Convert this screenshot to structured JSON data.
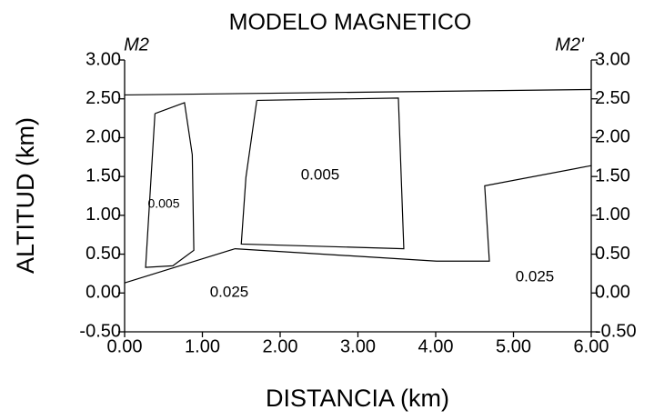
{
  "chart_data": {
    "type": "polygon",
    "title": "MODELO MAGNETICO",
    "x_label": "DISTANCIA (km)",
    "y_label": "ALTITUD (km)",
    "left_marker": "M2",
    "right_marker": "M2'",
    "xlim": [
      0,
      6
    ],
    "ylim": [
      -0.5,
      3
    ],
    "y2lim": [
      -0.5,
      3
    ],
    "xticks": [
      {
        "value": 0,
        "label": "0.00"
      },
      {
        "value": 1,
        "label": "1.00"
      },
      {
        "value": 2,
        "label": "2.00"
      },
      {
        "value": 3,
        "label": "3.00"
      },
      {
        "value": 4,
        "label": "4.00"
      },
      {
        "value": 5,
        "label": "5.00"
      },
      {
        "value": 6,
        "label": "6.00"
      }
    ],
    "yticks": [
      {
        "value": -0.5,
        "label": "-0.50"
      },
      {
        "value": 0,
        "label": "0.00"
      },
      {
        "value": 0.5,
        "label": "0.50"
      },
      {
        "value": 1,
        "label": "1.00"
      },
      {
        "value": 1.5,
        "label": "1.50"
      },
      {
        "value": 2,
        "label": "2.00"
      },
      {
        "value": 2.5,
        "label": "2.50"
      },
      {
        "value": 3,
        "label": "3.00"
      }
    ],
    "y2ticks": [
      {
        "value": -0.5,
        "label": "-0.50"
      },
      {
        "value": 0,
        "label": "0.00"
      },
      {
        "value": 0.5,
        "label": "0.50"
      },
      {
        "value": 1,
        "label": "1.00"
      },
      {
        "value": 1.5,
        "label": "1.50"
      },
      {
        "value": 2,
        "label": "2.00"
      },
      {
        "value": 2.5,
        "label": "2.50"
      },
      {
        "value": 3,
        "label": "3.00"
      }
    ],
    "series": [
      {
        "color": "#000000",
        "x": [
          0,
          6
        ],
        "values": [
          2.55,
          2.62
        ]
      },
      {
        "color": "#000000",
        "x": [
          0.39,
          0.77,
          0.87,
          0.89,
          0.62,
          0.27,
          0.39
        ],
        "values": [
          2.31,
          2.45,
          1.78,
          0.55,
          0.35,
          0.33,
          2.31
        ]
      },
      {
        "color": "#000000",
        "x": [
          1.7,
          3.52,
          3.59,
          1.5,
          1.56,
          1.7
        ],
        "values": [
          2.48,
          2.51,
          0.57,
          0.63,
          1.49,
          2.48
        ]
      },
      {
        "color": "#000000",
        "x": [
          0,
          1.42,
          4.01,
          4.69,
          4.63,
          6
        ],
        "values": [
          0.13,
          0.57,
          0.41,
          0.41,
          1.38,
          1.64
        ]
      }
    ],
    "annotations": [
      "0.005",
      "0.005",
      "0.025",
      "0.025"
    ]
  }
}
